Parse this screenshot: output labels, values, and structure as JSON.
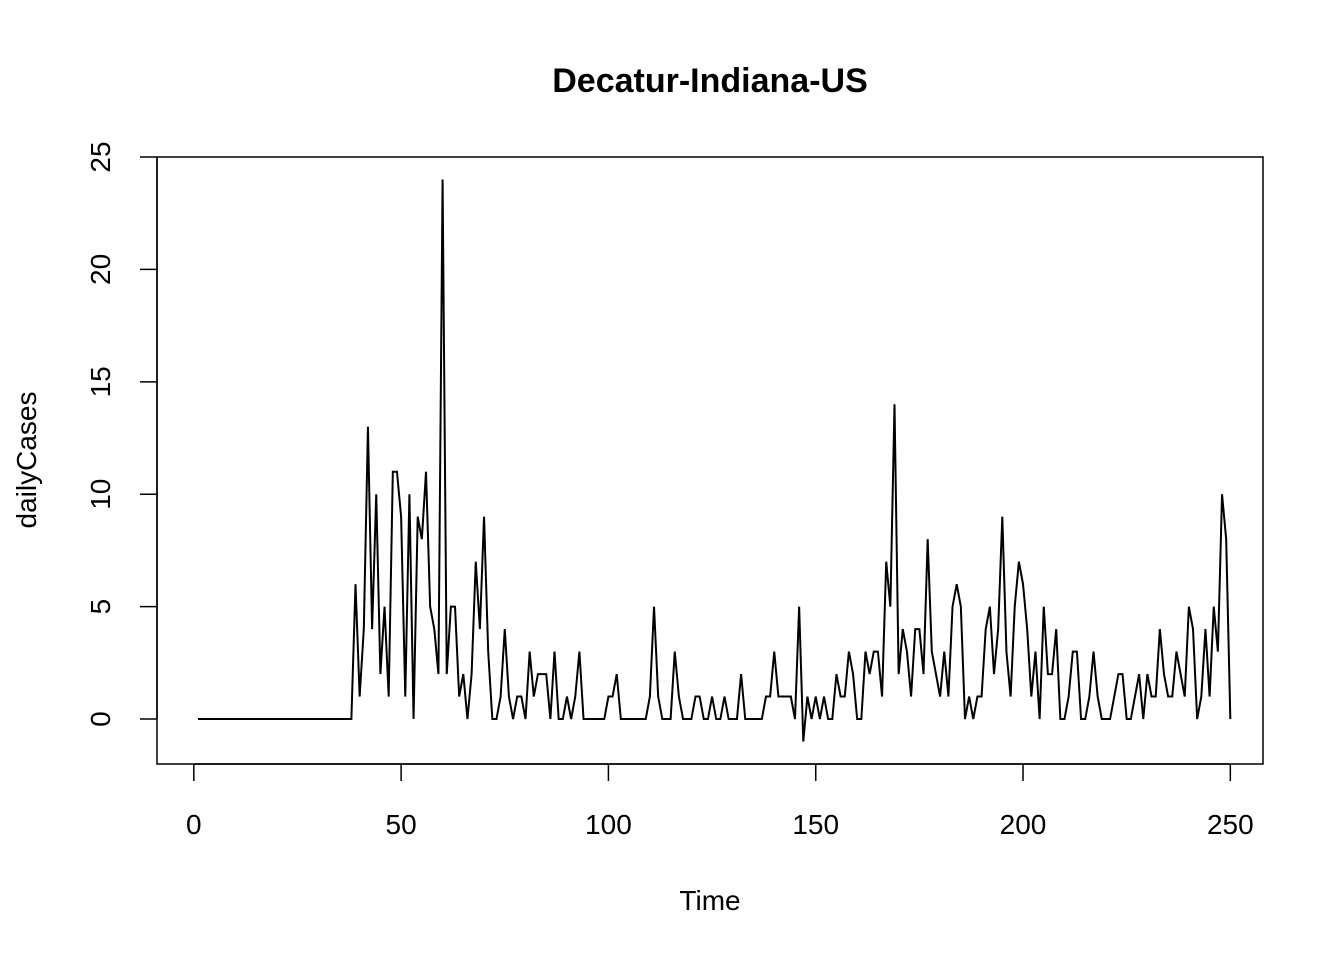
{
  "chart_data": {
    "type": "line",
    "title": "Decatur-Indiana-US",
    "xlabel": "Time",
    "ylabel": "dailyCases",
    "xlim": [
      1,
      248
    ],
    "ylim": [
      -1,
      24
    ],
    "x_ticks": [
      0,
      50,
      100,
      150,
      200,
      250
    ],
    "y_ticks": [
      0,
      5,
      10,
      15,
      20,
      25
    ],
    "grid": false,
    "legend": "none",
    "line_color": "#000000",
    "x_start": 1,
    "values": [
      0,
      0,
      0,
      0,
      0,
      0,
      0,
      0,
      0,
      0,
      0,
      0,
      0,
      0,
      0,
      0,
      0,
      0,
      0,
      0,
      0,
      0,
      0,
      0,
      0,
      0,
      0,
      0,
      0,
      0,
      0,
      0,
      0,
      0,
      0,
      0,
      0,
      0,
      6,
      1,
      4,
      13,
      4,
      10,
      2,
      5,
      1,
      11,
      11,
      9,
      1,
      10,
      0,
      9,
      8,
      11,
      5,
      4,
      2,
      24,
      2,
      5,
      5,
      1,
      2,
      0,
      2,
      7,
      4,
      9,
      3,
      0,
      0,
      1,
      4,
      1,
      0,
      1,
      1,
      0,
      3,
      1,
      2,
      2,
      2,
      0,
      3,
      0,
      0,
      1,
      0,
      1,
      3,
      0,
      0,
      0,
      0,
      0,
      0,
      1,
      1,
      2,
      0,
      0,
      0,
      0,
      0,
      0,
      0,
      1,
      5,
      1,
      0,
      0,
      0,
      3,
      1,
      0,
      0,
      0,
      1,
      1,
      0,
      0,
      1,
      0,
      0,
      1,
      0,
      0,
      0,
      2,
      0,
      0,
      0,
      0,
      0,
      1,
      1,
      3,
      1,
      1,
      1,
      1,
      0,
      5,
      -1,
      1,
      0,
      1,
      0,
      1,
      0,
      0,
      2,
      1,
      1,
      3,
      2,
      0,
      0,
      3,
      2,
      3,
      3,
      1,
      7,
      5,
      14,
      2,
      4,
      3,
      1,
      4,
      4,
      2,
      8,
      3,
      2,
      1,
      3,
      1,
      5,
      6,
      5,
      0,
      1,
      0,
      1,
      1,
      4,
      5,
      2,
      4,
      9,
      3,
      1,
      5,
      7,
      6,
      4,
      1,
      3,
      0,
      5,
      2,
      2,
      4,
      0,
      0,
      1,
      3,
      3,
      0,
      0,
      1,
      3,
      1,
      0,
      0,
      0,
      1,
      2,
      2,
      0,
      0,
      1,
      2,
      0,
      2,
      1,
      1,
      4,
      2,
      1,
      1,
      3,
      2,
      1,
      5,
      4,
      0,
      1,
      4,
      1,
      5,
      3,
      10,
      8,
      0
    ]
  }
}
